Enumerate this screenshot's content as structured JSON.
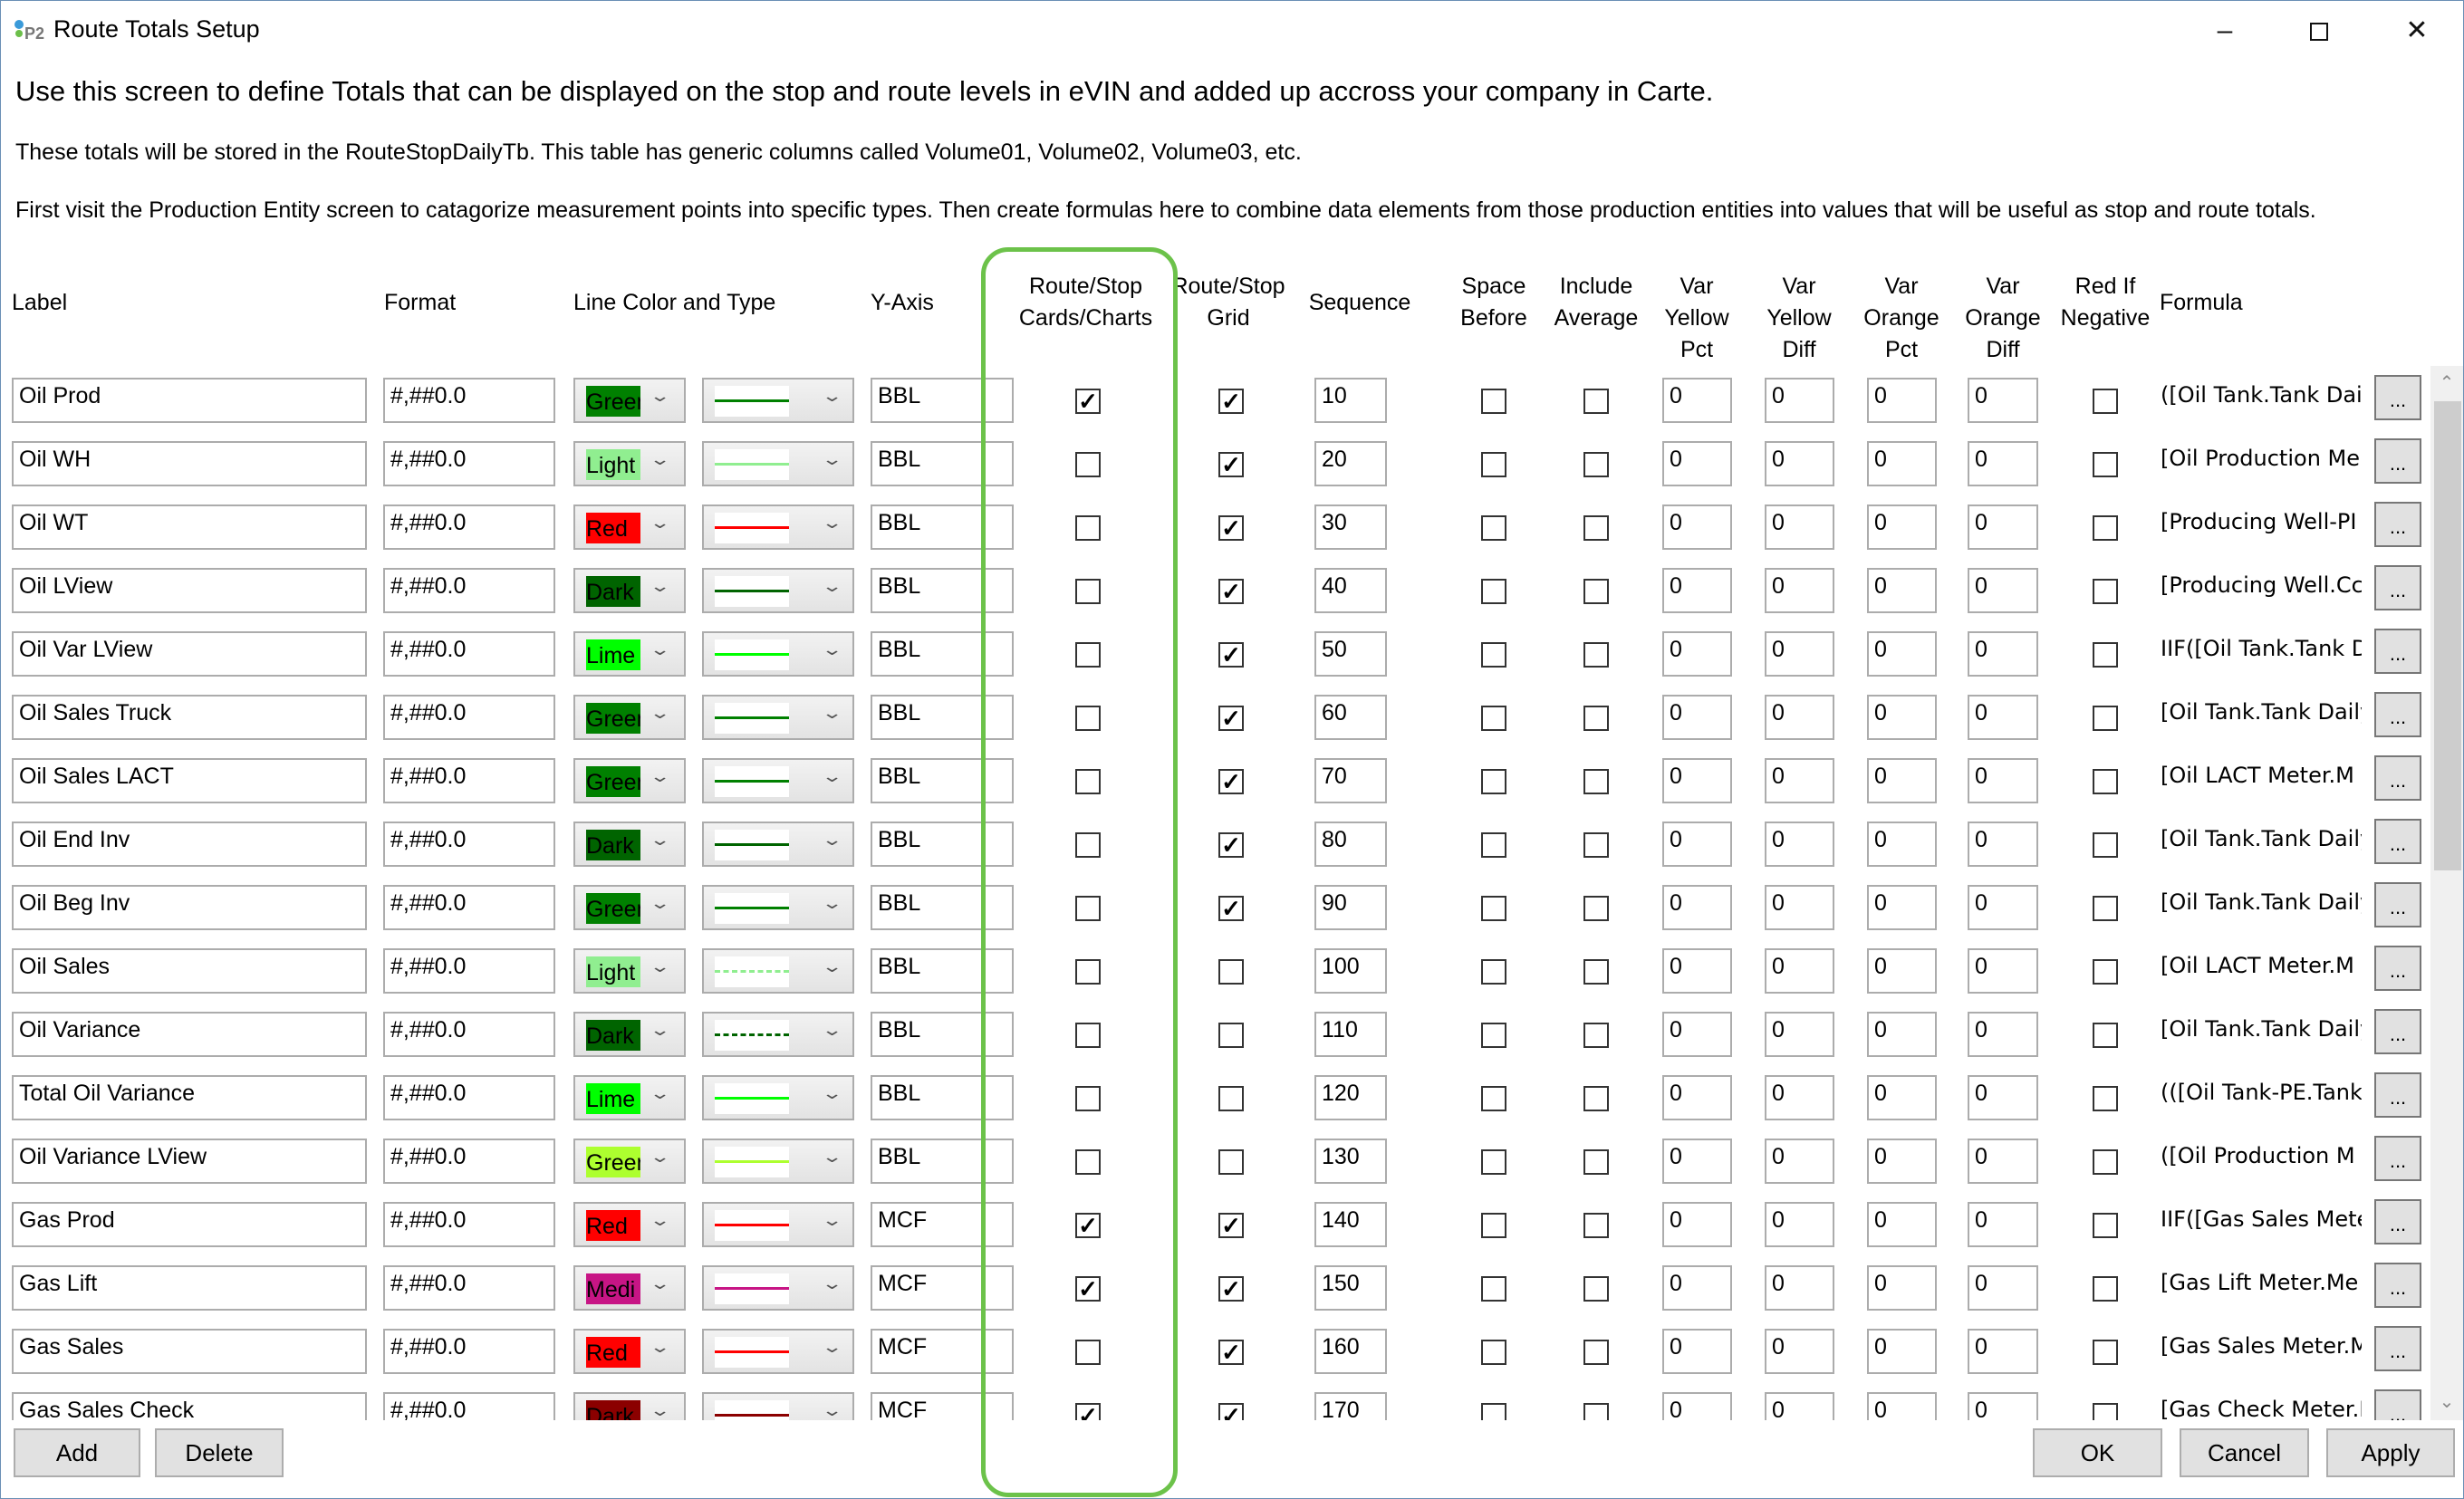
{
  "window": {
    "title": "Route Totals Setup",
    "icon": "p2-app-icon",
    "controls": [
      "minimize",
      "maximize",
      "close"
    ]
  },
  "intro": {
    "line1": "Use this screen to define Totals that can be displayed on the stop and route levels in eVIN and added up accross your company in Carte.",
    "line2": "These totals will be stored in the RouteStopDailyTb. This table has generic columns called Volume01, Volume02, Volume03, etc.",
    "line3": "First visit the Production Entity screen to catagorize measurement points into specific types.  Then create formulas here to combine data elements from those production entities into values that will be useful as stop and route totals."
  },
  "columns": {
    "label": "Label",
    "format": "Format",
    "line_color": "Line Color and Type",
    "y_axis": "Y-Axis",
    "cards1": "Route/Stop",
    "cards2": "Cards/Charts",
    "grid1": "Route/Stop",
    "grid2": "Grid",
    "sequence": "Sequence",
    "space1": "Space",
    "space2": "Before",
    "avg1": "Include",
    "avg2": "Average",
    "vyp1": "Var",
    "vyp2": "Yellow",
    "vyp3": "Pct",
    "vyd1": "Var",
    "vyd2": "Yellow",
    "vyd3": "Diff",
    "vop1": "Var",
    "vop2": "Orange",
    "vop3": "Pct",
    "vod1": "Var",
    "vod2": "Orange",
    "vod3": "Diff",
    "red1": "Red If",
    "red2": "Negative",
    "formula": "Formula"
  },
  "highlight_color": "#6cc24a",
  "rows": [
    {
      "label": "Oil Prod",
      "format": "#,##0.0",
      "color": "Green",
      "hex": "#008000",
      "line": "solid",
      "y_axis": "BBL",
      "cards": true,
      "grid": true,
      "sequence": "10",
      "space": false,
      "avg": false,
      "vyp": "0",
      "vyd": "0",
      "vop": "0",
      "vod": "0",
      "red": false,
      "formula": "([Oil Tank.Tank Dail"
    },
    {
      "label": "Oil WH",
      "format": "#,##0.0",
      "color": "Light",
      "hex": "#90ee90",
      "line": "solid",
      "y_axis": "BBL",
      "cards": false,
      "grid": true,
      "sequence": "20",
      "space": false,
      "avg": false,
      "vyp": "0",
      "vyd": "0",
      "vop": "0",
      "vod": "0",
      "red": false,
      "formula": "[Oil Production Me"
    },
    {
      "label": "Oil WT",
      "format": "#,##0.0",
      "color": "Red",
      "hex": "#ff0000",
      "line": "solid",
      "y_axis": "BBL",
      "cards": false,
      "grid": true,
      "sequence": "30",
      "space": false,
      "avg": false,
      "vyp": "0",
      "vyd": "0",
      "vop": "0",
      "vod": "0",
      "red": false,
      "formula": "[Producing Well-PI"
    },
    {
      "label": "Oil LView",
      "format": "#,##0.0",
      "color": "Dark",
      "hex": "#006400",
      "line": "solid",
      "y_axis": "BBL",
      "cards": false,
      "grid": true,
      "sequence": "40",
      "space": false,
      "avg": false,
      "vyp": "0",
      "vyd": "0",
      "vop": "0",
      "vod": "0",
      "red": false,
      "formula": "[Producing Well.Cc"
    },
    {
      "label": "Oil Var LView",
      "format": "#,##0.0",
      "color": "Lime",
      "hex": "#00ff00",
      "line": "solid",
      "y_axis": "BBL",
      "cards": false,
      "grid": true,
      "sequence": "50",
      "space": false,
      "avg": false,
      "vyp": "0",
      "vyd": "0",
      "vop": "0",
      "vod": "0",
      "red": false,
      "formula": "IIF([Oil Tank.Tank D"
    },
    {
      "label": "Oil Sales Truck",
      "format": "#,##0.0",
      "color": "Green",
      "hex": "#008000",
      "line": "solid",
      "y_axis": "BBL",
      "cards": false,
      "grid": true,
      "sequence": "60",
      "space": false,
      "avg": false,
      "vyp": "0",
      "vyd": "0",
      "vop": "0",
      "vod": "0",
      "red": false,
      "formula": "[Oil Tank.Tank Daily"
    },
    {
      "label": "Oil Sales LACT",
      "format": "#,##0.0",
      "color": "Green",
      "hex": "#008000",
      "line": "solid",
      "y_axis": "BBL",
      "cards": false,
      "grid": true,
      "sequence": "70",
      "space": false,
      "avg": false,
      "vyp": "0",
      "vyd": "0",
      "vop": "0",
      "vod": "0",
      "red": false,
      "formula": "[Oil LACT Meter.M"
    },
    {
      "label": "Oil End Inv",
      "format": "#,##0.0",
      "color": "Dark",
      "hex": "#006400",
      "line": "solid",
      "y_axis": "BBL",
      "cards": false,
      "grid": true,
      "sequence": "80",
      "space": false,
      "avg": false,
      "vyp": "0",
      "vyd": "0",
      "vop": "0",
      "vod": "0",
      "red": false,
      "formula": "[Oil Tank.Tank Daily"
    },
    {
      "label": "Oil Beg Inv",
      "format": "#,##0.0",
      "color": "Green",
      "hex": "#008000",
      "line": "solid",
      "y_axis": "BBL",
      "cards": false,
      "grid": true,
      "sequence": "90",
      "space": false,
      "avg": false,
      "vyp": "0",
      "vyd": "0",
      "vop": "0",
      "vod": "0",
      "red": false,
      "formula": "[Oil Tank.Tank Daily"
    },
    {
      "label": "Oil Sales",
      "format": "#,##0.0",
      "color": "Light",
      "hex": "#90ee90",
      "line": "dashed",
      "y_axis": "BBL",
      "cards": false,
      "grid": false,
      "sequence": "100",
      "space": false,
      "avg": false,
      "vyp": "0",
      "vyd": "0",
      "vop": "0",
      "vod": "0",
      "red": false,
      "formula": "[Oil LACT Meter.M"
    },
    {
      "label": "Oil Variance",
      "format": "#,##0.0",
      "color": "Dark",
      "hex": "#006400",
      "line": "dashed",
      "y_axis": "BBL",
      "cards": false,
      "grid": false,
      "sequence": "110",
      "space": false,
      "avg": false,
      "vyp": "0",
      "vyd": "0",
      "vop": "0",
      "vod": "0",
      "red": false,
      "formula": "[Oil Tank.Tank Daily"
    },
    {
      "label": "Total Oil Variance",
      "format": "#,##0.0",
      "color": "Lime",
      "hex": "#00ff00",
      "line": "solid",
      "y_axis": "BBL",
      "cards": false,
      "grid": false,
      "sequence": "120",
      "space": false,
      "avg": false,
      "vyp": "0",
      "vyd": "0",
      "vop": "0",
      "vod": "0",
      "red": false,
      "formula": "(([Oil Tank-PE.Tank"
    },
    {
      "label": "Oil Variance LView",
      "format": "#,##0.0",
      "color": "Green",
      "hex": "#adff2f",
      "line": "solid",
      "y_axis": "BBL",
      "cards": false,
      "grid": false,
      "sequence": "130",
      "space": false,
      "avg": false,
      "vyp": "0",
      "vyd": "0",
      "vop": "0",
      "vod": "0",
      "red": false,
      "formula": "([Oil Production M"
    },
    {
      "label": "Gas Prod",
      "format": "#,##0.0",
      "color": "Red",
      "hex": "#ff0000",
      "line": "solid",
      "y_axis": "MCF",
      "cards": true,
      "grid": true,
      "sequence": "140",
      "space": false,
      "avg": false,
      "vyp": "0",
      "vyd": "0",
      "vop": "0",
      "vod": "0",
      "red": false,
      "formula": "IIF([Gas Sales Mete"
    },
    {
      "label": "Gas Lift",
      "format": "#,##0.0",
      "color": "Medi",
      "hex": "#c71585",
      "line": "solid",
      "y_axis": "MCF",
      "cards": true,
      "grid": true,
      "sequence": "150",
      "space": false,
      "avg": false,
      "vyp": "0",
      "vyd": "0",
      "vop": "0",
      "vod": "0",
      "red": false,
      "formula": "[Gas Lift Meter.Me"
    },
    {
      "label": "Gas Sales",
      "format": "#,##0.0",
      "color": "Red",
      "hex": "#ff0000",
      "line": "solid",
      "y_axis": "MCF",
      "cards": false,
      "grid": true,
      "sequence": "160",
      "space": false,
      "avg": false,
      "vyp": "0",
      "vyd": "0",
      "vop": "0",
      "vod": "0",
      "red": false,
      "formula": "[Gas Sales Meter.M"
    },
    {
      "label": "Gas Sales Check",
      "format": "#,##0.0",
      "color": "Dark",
      "hex": "#8b0000",
      "line": "solid",
      "y_axis": "MCF",
      "cards": true,
      "grid": true,
      "sequence": "170",
      "space": false,
      "avg": false,
      "vyp": "0",
      "vyd": "0",
      "vop": "0",
      "vod": "0",
      "red": false,
      "formula": "[Gas Check Meter.I"
    }
  ],
  "formula_button_label": "...",
  "buttons": {
    "add": "Add",
    "delete": "Delete",
    "ok": "OK",
    "cancel": "Cancel",
    "apply": "Apply"
  }
}
